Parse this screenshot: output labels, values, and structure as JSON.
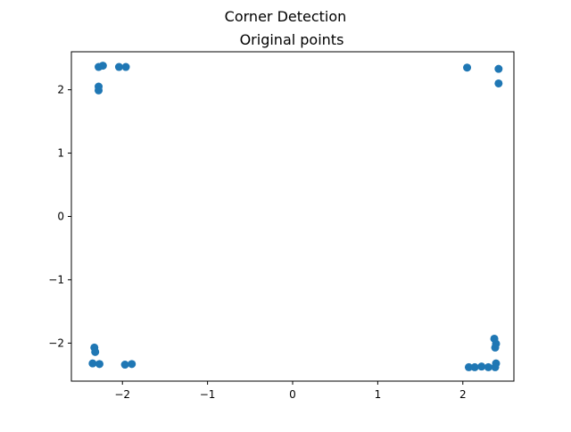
{
  "chart_data": {
    "type": "scatter",
    "suptitle": "Corner Detection",
    "title": "Original points",
    "xlabel": "",
    "ylabel": "",
    "xlim": [
      -2.6,
      2.6
    ],
    "ylim": [
      -2.6,
      2.6
    ],
    "xticks": [
      -2,
      -1,
      0,
      1,
      2
    ],
    "yticks": [
      -2,
      -1,
      0,
      1,
      2
    ],
    "xtick_labels": [
      "−2",
      "−1",
      "0",
      "1",
      "2"
    ],
    "ytick_labels": [
      "−2",
      "−1",
      "0",
      "1",
      "2"
    ],
    "grid": false,
    "legend": "none",
    "marker_color": "#1f77b4",
    "points": [
      {
        "x": -2.28,
        "y": 2.36
      },
      {
        "x": -2.23,
        "y": 2.38
      },
      {
        "x": -2.04,
        "y": 2.36
      },
      {
        "x": -1.96,
        "y": 2.36
      },
      {
        "x": -2.28,
        "y": 2.05
      },
      {
        "x": -2.28,
        "y": 1.99
      },
      {
        "x": 2.05,
        "y": 2.35
      },
      {
        "x": 2.42,
        "y": 2.33
      },
      {
        "x": 2.42,
        "y": 2.1
      },
      {
        "x": -2.33,
        "y": -2.07
      },
      {
        "x": -2.32,
        "y": -2.14
      },
      {
        "x": -2.35,
        "y": -2.32
      },
      {
        "x": -2.27,
        "y": -2.33
      },
      {
        "x": -1.97,
        "y": -2.34
      },
      {
        "x": -1.89,
        "y": -2.33
      },
      {
        "x": 2.37,
        "y": -1.93
      },
      {
        "x": 2.39,
        "y": -2.01
      },
      {
        "x": 2.38,
        "y": -2.07
      },
      {
        "x": 2.39,
        "y": -2.32
      },
      {
        "x": 2.07,
        "y": -2.38
      },
      {
        "x": 2.14,
        "y": -2.38
      },
      {
        "x": 2.22,
        "y": -2.37
      },
      {
        "x": 2.3,
        "y": -2.38
      },
      {
        "x": 2.38,
        "y": -2.38
      }
    ]
  }
}
